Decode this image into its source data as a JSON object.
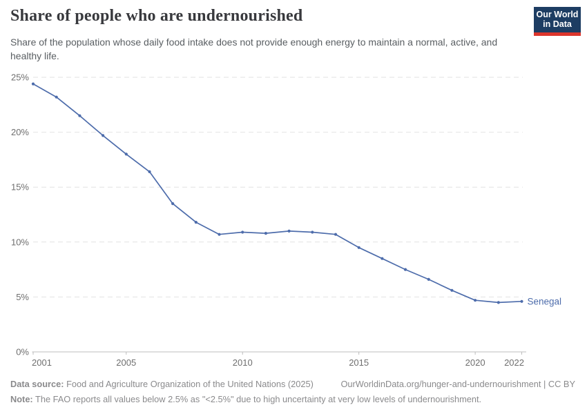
{
  "header": {
    "title": "Share of people who are undernourished",
    "subtitle": "Share of the population whose daily food intake does not provide enough energy to maintain a normal, active, and healthy life.",
    "logo": {
      "line1": "Our World",
      "line2": "in Data"
    }
  },
  "chart_data": {
    "type": "line",
    "title": "Share of people who are undernourished",
    "xlabel": "",
    "ylabel": "",
    "xlim": [
      2001,
      2022
    ],
    "ylim": [
      0,
      25
    ],
    "grid": "horizontal-dashed",
    "legend_position": "end-of-line-label",
    "x": [
      2001,
      2002,
      2003,
      2004,
      2005,
      2006,
      2007,
      2008,
      2009,
      2010,
      2011,
      2012,
      2013,
      2014,
      2015,
      2016,
      2017,
      2018,
      2019,
      2020,
      2021,
      2022
    ],
    "series": [
      {
        "name": "Senegal",
        "color": "#4d6cab",
        "values": [
          24.4,
          23.2,
          21.5,
          19.7,
          18.0,
          16.4,
          13.5,
          11.8,
          10.7,
          10.9,
          10.8,
          11.0,
          10.9,
          10.7,
          9.5,
          8.5,
          7.5,
          6.6,
          5.6,
          4.7,
          4.5,
          4.6
        ]
      }
    ],
    "y_ticks": [
      {
        "value": 0,
        "label": "0%"
      },
      {
        "value": 5,
        "label": "5%"
      },
      {
        "value": 10,
        "label": "10%"
      },
      {
        "value": 15,
        "label": "15%"
      },
      {
        "value": 20,
        "label": "20%"
      },
      {
        "value": 25,
        "label": "25%"
      }
    ],
    "x_ticks": [
      {
        "value": 2001,
        "label": "2001"
      },
      {
        "value": 2005,
        "label": "2005"
      },
      {
        "value": 2010,
        "label": "2010"
      },
      {
        "value": 2015,
        "label": "2015"
      },
      {
        "value": 2020,
        "label": "2020"
      },
      {
        "value": 2022,
        "label": "2022"
      }
    ]
  },
  "footer": {
    "datasource_label": "Data source:",
    "datasource_text": " Food and Agriculture Organization of the United Nations (2025)",
    "link_text": "OurWorldinData.org/hunger-and-undernourishment | CC BY",
    "note_label": "Note:",
    "note_text": " The FAO reports all values below 2.5% as \"<2.5%\" due to high uncertainty at very low levels of undernourishment."
  },
  "colors": {
    "line": "#4d6cab",
    "title": "#38393d",
    "subtitle": "#595e62",
    "axis_label": "#6e6e6e",
    "gridline": "#e2e2e2",
    "axis_line": "#bcbcbc",
    "footer": "#8a8a8c",
    "logo_bg": "#1d3d63",
    "logo_red": "#dc352c"
  }
}
